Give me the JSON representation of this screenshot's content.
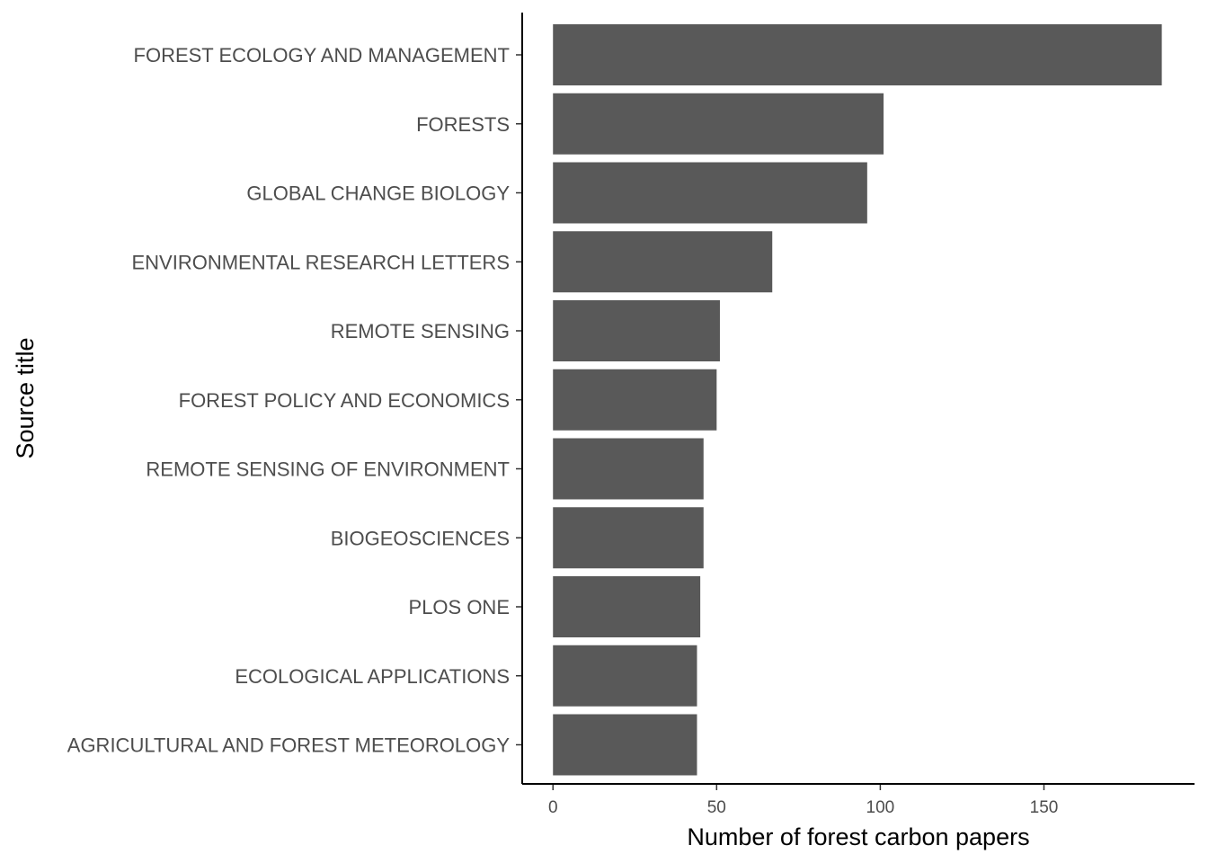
{
  "chart_data": {
    "type": "bar",
    "orientation": "horizontal",
    "categories": [
      "FOREST ECOLOGY AND MANAGEMENT",
      "FORESTS",
      "GLOBAL CHANGE BIOLOGY",
      "ENVIRONMENTAL RESEARCH LETTERS",
      "REMOTE SENSING",
      "FOREST POLICY AND ECONOMICS",
      "REMOTE SENSING OF ENVIRONMENT",
      "BIOGEOSCIENCES",
      "PLOS ONE",
      "ECOLOGICAL APPLICATIONS",
      "AGRICULTURAL AND FOREST METEOROLOGY"
    ],
    "values": [
      186,
      101,
      96,
      67,
      51,
      50,
      46,
      46,
      45,
      44,
      44
    ],
    "xlabel": "Number of forest carbon papers",
    "ylabel": "Source title",
    "xlim": [
      -9.4,
      196
    ],
    "xticks": [
      0,
      50,
      100,
      150
    ],
    "bar_color": "#595959",
    "grid": false,
    "legend": "none"
  }
}
